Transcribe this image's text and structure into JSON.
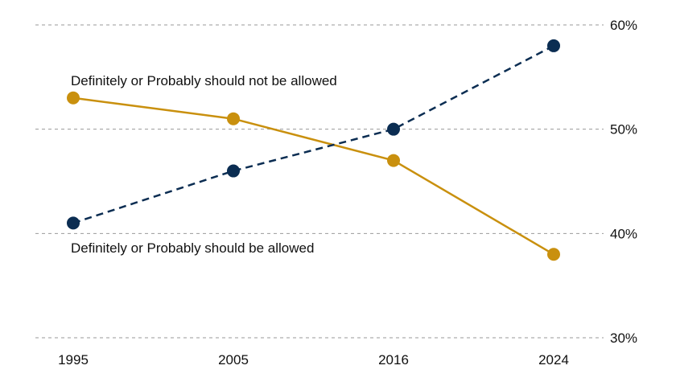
{
  "chart_data": {
    "type": "line",
    "title": "",
    "xlabel": "",
    "ylabel": "",
    "categories": [
      "1995",
      "2005",
      "2016",
      "2024"
    ],
    "ylim": [
      30,
      60
    ],
    "yticks": [
      30,
      40,
      50,
      60
    ],
    "ytick_labels": [
      "30%",
      "40%",
      "50%",
      "60%"
    ],
    "grid": true,
    "series": [
      {
        "name": "Definitely or Probably should not be allowed",
        "values": [
          53,
          51,
          47,
          38
        ],
        "color": "#c9900e",
        "line_style": "solid"
      },
      {
        "name": "Definitely or Probably should be allowed",
        "values": [
          41,
          46,
          50,
          58
        ],
        "color": "#0b2d52",
        "line_style": "dashed"
      }
    ]
  }
}
